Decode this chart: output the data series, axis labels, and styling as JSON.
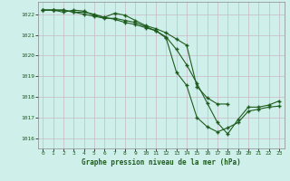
{
  "title": "Graphe pression niveau de la mer (hPa)",
  "bg_color": "#cff0ea",
  "grid_color": "#c8b8c8",
  "line_color": "#1e5c1e",
  "xlim": [
    -0.5,
    23.5
  ],
  "ylim": [
    1015.5,
    1022.6
  ],
  "yticks": [
    1016,
    1017,
    1018,
    1019,
    1020,
    1021,
    1022
  ],
  "xticks": [
    0,
    1,
    2,
    3,
    4,
    5,
    6,
    7,
    8,
    9,
    10,
    11,
    12,
    13,
    14,
    15,
    16,
    17,
    18,
    19,
    20,
    21,
    22,
    23
  ],
  "series1": [
    1022.2,
    1022.2,
    1022.2,
    1022.1,
    1022.1,
    1022.0,
    1021.85,
    1021.75,
    1021.6,
    1021.5,
    1021.35,
    1021.2,
    1020.85,
    1019.2,
    1018.55,
    1017.0,
    1016.55,
    1016.3,
    1016.5,
    1016.75,
    1017.3,
    1017.4,
    1017.5,
    1017.55
  ],
  "series2": [
    1022.2,
    1022.2,
    1022.1,
    1022.2,
    1022.15,
    1021.95,
    1021.85,
    1022.05,
    1021.95,
    1021.7,
    1021.45,
    1021.3,
    1021.1,
    1020.8,
    1020.5,
    1018.5,
    1017.95,
    1017.65,
    1017.65,
    null,
    null,
    null,
    null,
    null
  ],
  "series3": [
    1022.2,
    1022.2,
    1022.2,
    1022.1,
    1022.0,
    1021.9,
    1021.8,
    1021.8,
    1021.7,
    1021.6,
    1021.4,
    1021.2,
    1020.9,
    1020.3,
    1019.55,
    1018.65,
    1017.7,
    1016.75,
    1016.2,
    1016.9,
    1017.5,
    1017.5,
    1017.6,
    1017.8
  ]
}
